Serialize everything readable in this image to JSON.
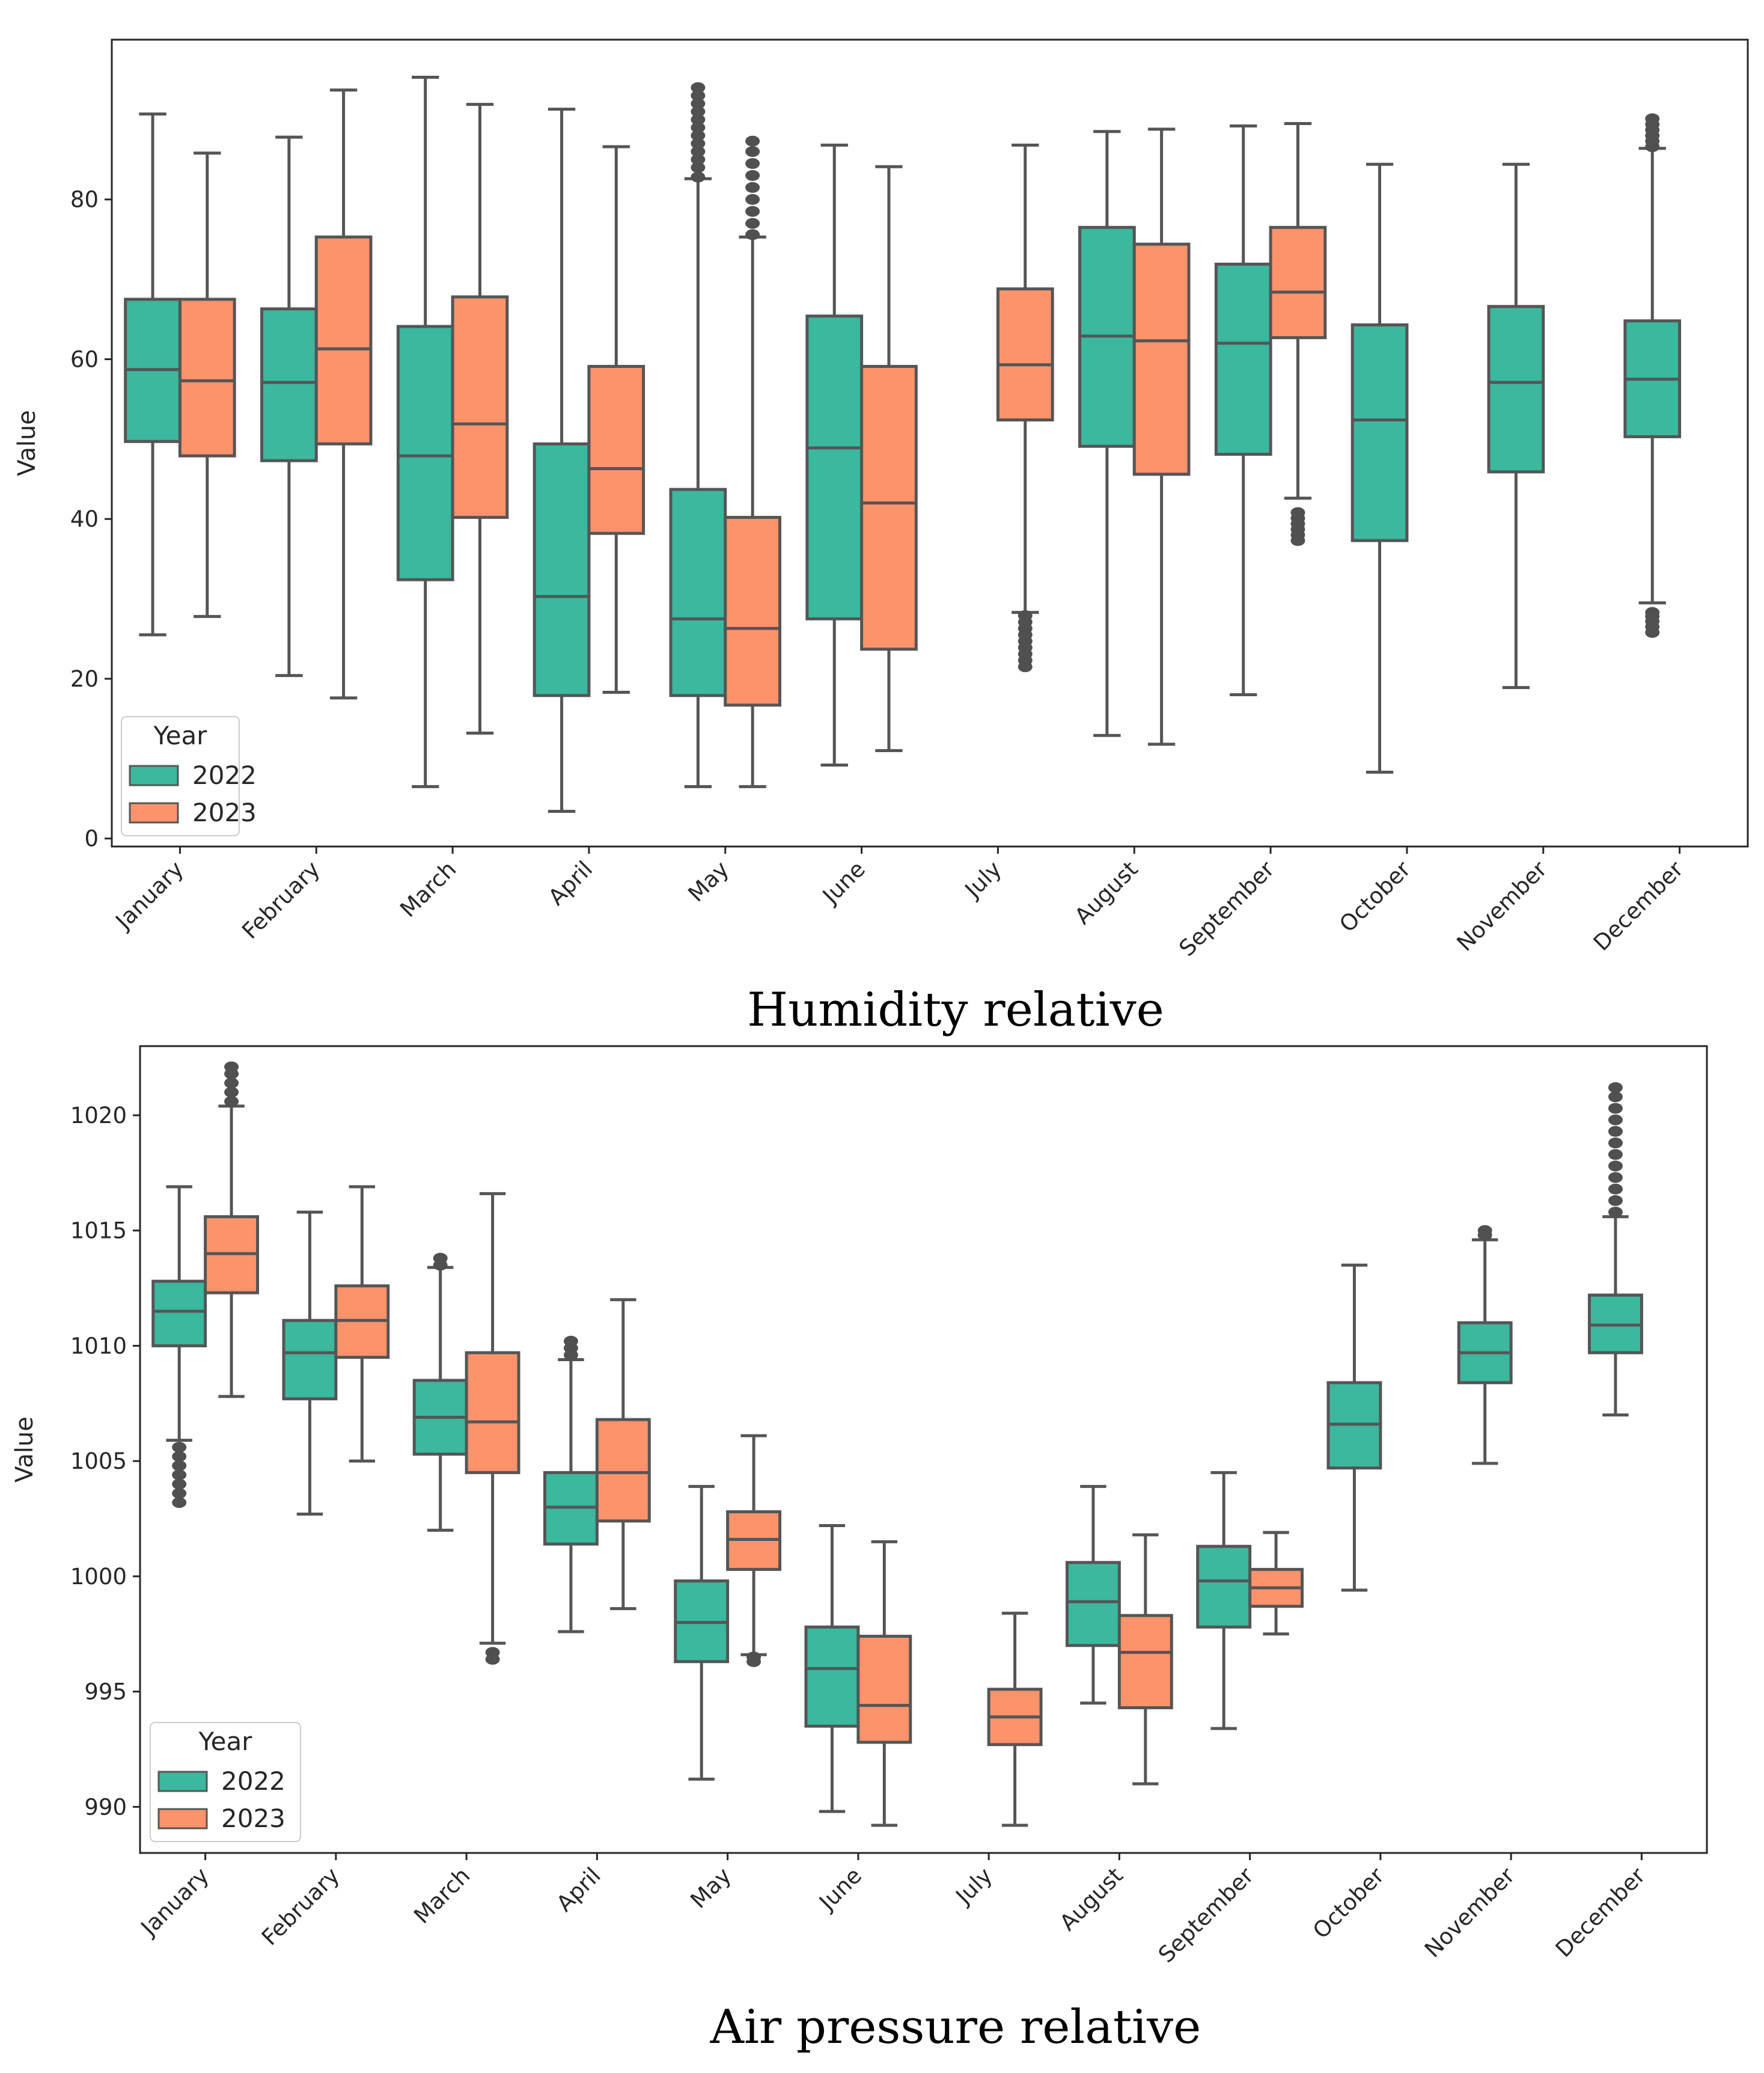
{
  "colors": {
    "y2022": "#3bb89e",
    "y2023": "#fc936b",
    "line": "#555555",
    "outlier": "#505050"
  },
  "chart_data": [
    {
      "type": "box",
      "caption": "Humidity relative",
      "ylabel": "Value",
      "ylim": [
        -1,
        100
      ],
      "yticks": [
        0,
        20,
        40,
        60,
        80
      ],
      "categories": [
        "January",
        "February",
        "March",
        "April",
        "May",
        "June",
        "July",
        "August",
        "September",
        "October",
        "November",
        "December"
      ],
      "legend": {
        "title": "Year",
        "position": "lower-left"
      },
      "series": [
        {
          "name": "2022",
          "color": "#3bb89e",
          "boxes": [
            {
              "month": "January",
              "whislo": 25.5,
              "q1": 49.7,
              "med": 58.7,
              "q3": 67.5,
              "whishi": 90.7,
              "fliers": []
            },
            {
              "month": "February",
              "whislo": 20.4,
              "q1": 47.3,
              "med": 57.1,
              "q3": 66.3,
              "whishi": 87.8,
              "fliers": []
            },
            {
              "month": "March",
              "whislo": 6.5,
              "q1": 32.4,
              "med": 47.9,
              "q3": 64.1,
              "whishi": 95.3,
              "fliers": []
            },
            {
              "month": "April",
              "whislo": 3.4,
              "q1": 17.9,
              "med": 30.3,
              "q3": 49.4,
              "whishi": 91.3,
              "fliers": []
            },
            {
              "month": "May",
              "whislo": 6.5,
              "q1": 17.9,
              "med": 27.5,
              "q3": 43.7,
              "whishi": 82.6,
              "fliers": [
                82.8,
                84,
                85,
                86,
                87,
                88,
                89,
                90,
                91,
                92,
                93,
                94
              ]
            },
            {
              "month": "June",
              "whislo": 9.2,
              "q1": 27.5,
              "med": 48.9,
              "q3": 65.4,
              "whishi": 86.8,
              "fliers": []
            },
            null,
            {
              "month": "August",
              "whislo": 12.9,
              "q1": 49.1,
              "med": 62.9,
              "q3": 76.5,
              "whishi": 88.5,
              "fliers": []
            },
            {
              "month": "September",
              "whislo": 18.0,
              "q1": 48.1,
              "med": 62.0,
              "q3": 71.9,
              "whishi": 89.2,
              "fliers": []
            },
            {
              "month": "October",
              "whislo": 8.3,
              "q1": 37.3,
              "med": 52.4,
              "q3": 64.3,
              "whishi": 84.4,
              "fliers": []
            },
            {
              "month": "November",
              "whislo": 18.9,
              "q1": 45.9,
              "med": 57.1,
              "q3": 66.6,
              "whishi": 84.4,
              "fliers": []
            },
            {
              "month": "December",
              "whislo": 29.5,
              "q1": 50.3,
              "med": 57.5,
              "q3": 64.8,
              "whishi": 86.4,
              "fliers": [
                25.8,
                26.5,
                27.2,
                27.8,
                28.3,
                86.6,
                87.3,
                88,
                88.7,
                89.4,
                90.1
              ]
            }
          ]
        },
        {
          "name": "2023",
          "color": "#fc936b",
          "boxes": [
            {
              "month": "January",
              "whislo": 27.8,
              "q1": 47.9,
              "med": 57.3,
              "q3": 67.5,
              "whishi": 85.8,
              "fliers": []
            },
            {
              "month": "February",
              "whislo": 17.6,
              "q1": 49.4,
              "med": 61.3,
              "q3": 75.3,
              "whishi": 93.7,
              "fliers": []
            },
            {
              "month": "March",
              "whislo": 13.2,
              "q1": 40.2,
              "med": 51.9,
              "q3": 67.8,
              "whishi": 91.9,
              "fliers": []
            },
            {
              "month": "April",
              "whislo": 18.3,
              "q1": 38.2,
              "med": 46.3,
              "q3": 59.1,
              "whishi": 86.6,
              "fliers": []
            },
            {
              "month": "May",
              "whislo": 6.5,
              "q1": 16.7,
              "med": 26.3,
              "q3": 40.2,
              "whishi": 75.3,
              "fliers": [
                75.6,
                77,
                78.5,
                80,
                81.5,
                83,
                84.5,
                86,
                87.3
              ]
            },
            {
              "month": "June",
              "whislo": 11.0,
              "q1": 23.7,
              "med": 42.0,
              "q3": 59.1,
              "whishi": 84.1,
              "fliers": []
            },
            {
              "month": "July",
              "whislo": 28.3,
              "q1": 52.4,
              "med": 59.3,
              "q3": 68.8,
              "whishi": 86.8,
              "fliers": [
                21.5,
                22.3,
                23.1,
                23.9,
                24.7,
                25.5,
                26.3,
                27.1,
                27.9
              ]
            },
            {
              "month": "August",
              "whislo": 11.8,
              "q1": 45.6,
              "med": 62.3,
              "q3": 74.4,
              "whishi": 88.8,
              "fliers": []
            },
            {
              "month": "September",
              "whislo": 42.6,
              "q1": 62.7,
              "med": 68.4,
              "q3": 76.5,
              "whishi": 89.5,
              "fliers": [
                37.3,
                38,
                38.7,
                39.4,
                40.1,
                40.8
              ]
            },
            null,
            null,
            null
          ]
        }
      ]
    },
    {
      "type": "box",
      "caption": "Air pressure relative",
      "ylabel": "Value",
      "ylim": [
        988,
        1023
      ],
      "yticks": [
        990,
        995,
        1000,
        1005,
        1010,
        1015,
        1020
      ],
      "categories": [
        "January",
        "February",
        "March",
        "April",
        "May",
        "June",
        "July",
        "August",
        "September",
        "October",
        "November",
        "December"
      ],
      "legend": {
        "title": "Year",
        "position": "lower-left"
      },
      "series": [
        {
          "name": "2022",
          "color": "#3bb89e",
          "boxes": [
            {
              "month": "January",
              "whislo": 1005.9,
              "q1": 1010.0,
              "med": 1011.5,
              "q3": 1012.8,
              "whishi": 1016.9,
              "fliers": [
                1003.2,
                1003.6,
                1004,
                1004.4,
                1004.8,
                1005.2,
                1005.6
              ]
            },
            {
              "month": "February",
              "whislo": 1002.7,
              "q1": 1007.7,
              "med": 1009.7,
              "q3": 1011.1,
              "whishi": 1015.8,
              "fliers": []
            },
            {
              "month": "March",
              "whislo": 1002.0,
              "q1": 1005.3,
              "med": 1006.9,
              "q3": 1008.5,
              "whishi": 1013.4,
              "fliers": [
                1013.5,
                1013.8
              ]
            },
            {
              "month": "April",
              "whislo": 997.6,
              "q1": 1001.4,
              "med": 1003.0,
              "q3": 1004.5,
              "whishi": 1009.4,
              "fliers": [
                1009.6,
                1009.9,
                1010.2
              ]
            },
            {
              "month": "May",
              "whislo": 991.2,
              "q1": 996.3,
              "med": 998.0,
              "q3": 999.8,
              "whishi": 1003.9,
              "fliers": []
            },
            {
              "month": "June",
              "whislo": 989.8,
              "q1": 993.5,
              "med": 996.0,
              "q3": 997.8,
              "whishi": 1002.2,
              "fliers": []
            },
            null,
            {
              "month": "August",
              "whislo": 994.5,
              "q1": 997.0,
              "med": 998.9,
              "q3": 1000.6,
              "whishi": 1003.9,
              "fliers": []
            },
            {
              "month": "September",
              "whislo": 993.4,
              "q1": 997.8,
              "med": 999.8,
              "q3": 1001.3,
              "whishi": 1004.5,
              "fliers": []
            },
            {
              "month": "October",
              "whislo": 999.4,
              "q1": 1004.7,
              "med": 1006.6,
              "q3": 1008.4,
              "whishi": 1013.5,
              "fliers": []
            },
            {
              "month": "November",
              "whislo": 1004.9,
              "q1": 1008.4,
              "med": 1009.7,
              "q3": 1011.0,
              "whishi": 1014.6,
              "fliers": [
                1014.8,
                1015.0
              ]
            },
            {
              "month": "December",
              "whislo": 1007.0,
              "q1": 1009.7,
              "med": 1010.9,
              "q3": 1012.2,
              "whishi": 1015.6,
              "fliers": [
                1015.8,
                1016.3,
                1016.8,
                1017.3,
                1017.8,
                1018.3,
                1018.8,
                1019.3,
                1019.8,
                1020.3,
                1020.8,
                1021.2
              ]
            }
          ]
        },
        {
          "name": "2023",
          "color": "#fc936b",
          "boxes": [
            {
              "month": "January",
              "whislo": 1007.8,
              "q1": 1012.3,
              "med": 1014.0,
              "q3": 1015.6,
              "whishi": 1020.4,
              "fliers": [
                1020.6,
                1021,
                1021.4,
                1021.8,
                1022.1
              ]
            },
            {
              "month": "February",
              "whislo": 1005.0,
              "q1": 1009.5,
              "med": 1011.1,
              "q3": 1012.6,
              "whishi": 1016.9,
              "fliers": []
            },
            {
              "month": "March",
              "whislo": 997.1,
              "q1": 1004.5,
              "med": 1006.7,
              "q3": 1009.7,
              "whishi": 1016.6,
              "fliers": [
                996.4,
                996.7
              ]
            },
            {
              "month": "April",
              "whislo": 998.6,
              "q1": 1002.4,
              "med": 1004.5,
              "q3": 1006.8,
              "whishi": 1012.0,
              "fliers": []
            },
            {
              "month": "May",
              "whislo": 996.6,
              "q1": 1000.3,
              "med": 1001.6,
              "q3": 1002.8,
              "whishi": 1006.1,
              "fliers": [
                996.3,
                996.5
              ]
            },
            {
              "month": "June",
              "whislo": 989.2,
              "q1": 992.8,
              "med": 994.4,
              "q3": 997.4,
              "whishi": 1001.5,
              "fliers": []
            },
            {
              "month": "July",
              "whislo": 989.2,
              "q1": 992.7,
              "med": 993.9,
              "q3": 995.1,
              "whishi": 998.4,
              "fliers": []
            },
            {
              "month": "August",
              "whislo": 991.0,
              "q1": 994.3,
              "med": 996.7,
              "q3": 998.3,
              "whishi": 1001.8,
              "fliers": []
            },
            {
              "month": "September",
              "whislo": 997.5,
              "q1": 998.7,
              "med": 999.5,
              "q3": 1000.3,
              "whishi": 1001.9,
              "fliers": []
            },
            null,
            null,
            null
          ]
        }
      ]
    }
  ]
}
